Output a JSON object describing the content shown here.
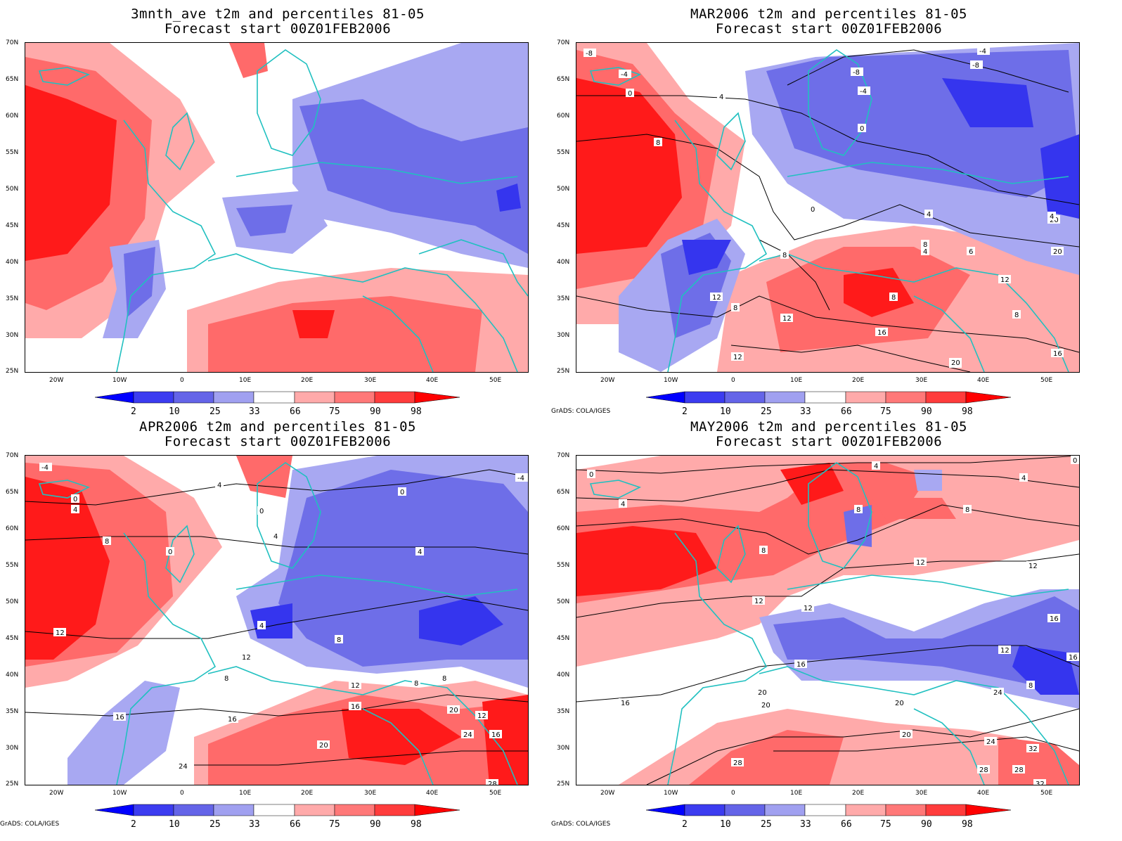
{
  "panels": [
    {
      "title_line1": "3mnth_ave t2m and percentiles 81-05",
      "title_line2": "Forecast start 00Z01FEB2006",
      "credit": "",
      "contours": []
    },
    {
      "title_line1": "MAR2006 t2m and percentiles 81-05",
      "title_line2": "Forecast start 00Z01FEB2006",
      "credit": "GrADS: COLA/IGES",
      "contours": [
        "-8",
        "-4",
        "0",
        "4",
        "8",
        "-4",
        "-8",
        "-8",
        "-4",
        "0",
        "4",
        "0",
        "4",
        "8",
        "12",
        "8",
        "12",
        "16",
        "12",
        "16",
        "20",
        "20",
        "4",
        "8",
        "8",
        "6",
        "12",
        "8",
        "16",
        "20"
      ]
    },
    {
      "title_line1": "APR2006 t2m and percentiles 81-05",
      "title_line2": "Forecast start 00Z01FEB2006",
      "credit": "GrADS: COLA/IGES",
      "contours": [
        "-4",
        "0",
        "4",
        "4",
        "0",
        "0",
        "8",
        "4",
        "4",
        "0",
        "8",
        "4",
        "8",
        "12",
        "8",
        "8",
        "12",
        "12",
        "16",
        "16",
        "20",
        "16",
        "20",
        "24",
        "12",
        "16",
        "24",
        "28",
        "-4"
      ]
    },
    {
      "title_line1": "MAY2006 t2m and percentiles 81-05",
      "title_line2": "Forecast start 00Z01FEB2006",
      "credit": "GrADS: COLA/IGES",
      "contours": [
        "0",
        "4",
        "4",
        "8",
        "8",
        "8",
        "12",
        "12",
        "12",
        "12",
        "16",
        "16",
        "12",
        "16",
        "20",
        "20",
        "20",
        "24",
        "28",
        "24",
        "28",
        "32",
        "28",
        "32",
        "16",
        "20",
        "4",
        "0",
        "8"
      ]
    }
  ],
  "axes": {
    "lat_labels": [
      "70N",
      "65N",
      "60N",
      "55N",
      "50N",
      "45N",
      "40N",
      "35N",
      "30N",
      "25N"
    ],
    "lon_labels": [
      "20W",
      "10W",
      "0",
      "10E",
      "20E",
      "30E",
      "40E",
      "50E"
    ]
  },
  "colorbar": {
    "labels": [
      "2",
      "10",
      "25",
      "33",
      "66",
      "75",
      "90",
      "98"
    ],
    "colors": [
      "#0000ff",
      "#3c3cf0",
      "#6464e8",
      "#a0a0f0",
      "#ffffff",
      "#ffaaaa",
      "#ff7878",
      "#ff3c3c",
      "#ff0000"
    ]
  },
  "colors": {
    "cold_strong": "#3535ee",
    "cold_mid": "#6e6ee8",
    "cold_light": "#a8a8f2",
    "warm_light": "#ffaaaa",
    "warm_mid": "#ff6a6a",
    "warm_strong": "#ff1a1a",
    "coastline": "#20c0c0",
    "contour": "#000000"
  }
}
